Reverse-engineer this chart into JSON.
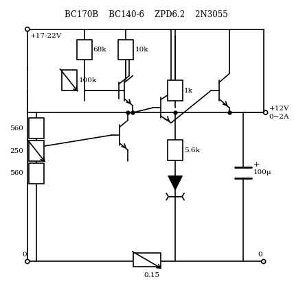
{
  "title": "BC170B    BC140-6    ZPD6.2    2N3055",
  "background": "#ffffff",
  "line_color": "#000000",
  "labels": {
    "input": "+17-22V",
    "output_v": "+12V",
    "output_a": "0~2A",
    "r1": "68k",
    "r2": "10k",
    "r3": "100k",
    "r4": "1k",
    "r5": "560",
    "r6": "250",
    "r7": "560",
    "r8": "5.6k",
    "r9": "0.15",
    "c1": "100μ",
    "gnd_left": "0",
    "gnd_right": "0"
  }
}
